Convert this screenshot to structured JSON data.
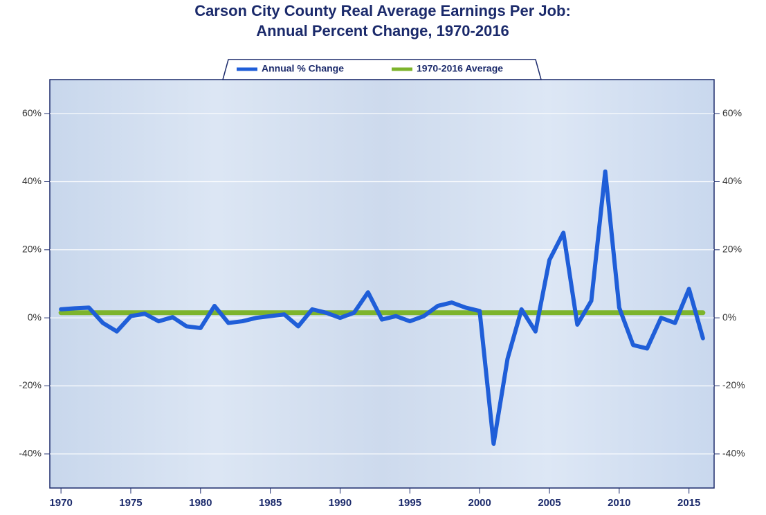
{
  "chart_data": {
    "type": "line",
    "title": [
      "Carson City County Real Average Earnings Per Job:",
      "Annual Percent Change, 1970-2016"
    ],
    "x": [
      1970,
      1971,
      1972,
      1973,
      1974,
      1975,
      1976,
      1977,
      1978,
      1979,
      1980,
      1981,
      1982,
      1983,
      1984,
      1985,
      1986,
      1987,
      1988,
      1989,
      1990,
      1991,
      1992,
      1993,
      1994,
      1995,
      1996,
      1997,
      1998,
      1999,
      2000,
      2001,
      2002,
      2003,
      2004,
      2005,
      2006,
      2007,
      2008,
      2009,
      2010,
      2011,
      2012,
      2013,
      2014,
      2015,
      2016
    ],
    "series": [
      {
        "name": "Annual % Change",
        "color": "#1f5ed8",
        "values": [
          2.5,
          2.8,
          3.0,
          -1.5,
          -4,
          0.5,
          1.2,
          -1,
          0.2,
          -2.5,
          -3,
          3.5,
          -1.5,
          -1,
          0,
          0.5,
          1,
          -2.5,
          2.5,
          1.5,
          0,
          1.5,
          7.5,
          -0.5,
          0.5,
          -1,
          0.5,
          3.5,
          4.5,
          3,
          2,
          -37,
          -12,
          2.5,
          -4,
          17,
          25,
          -2,
          5,
          43,
          3,
          -8,
          -9,
          0,
          -1.5,
          8.5,
          -6
        ]
      },
      {
        "name": "1970-2016 Average",
        "color": "#7db42c",
        "values": [
          1.5,
          1.5,
          1.5,
          1.5,
          1.5,
          1.5,
          1.5,
          1.5,
          1.5,
          1.5,
          1.5,
          1.5,
          1.5,
          1.5,
          1.5,
          1.5,
          1.5,
          1.5,
          1.5,
          1.5,
          1.5,
          1.5,
          1.5,
          1.5,
          1.5,
          1.5,
          1.5,
          1.5,
          1.5,
          1.5,
          1.5,
          1.5,
          1.5,
          1.5,
          1.5,
          1.5,
          1.5,
          1.5,
          1.5,
          1.5,
          1.5,
          1.5,
          1.5,
          1.5,
          1.5,
          1.5,
          1.5
        ]
      }
    ],
    "xlim": [
      1969.2,
      2016.8
    ],
    "xticks": [
      1970,
      1975,
      1980,
      1985,
      1990,
      1995,
      2000,
      2005,
      2010,
      2015
    ],
    "ylim": [
      -50,
      70
    ],
    "yticks": [
      {
        "value": -40,
        "label": "-40%"
      },
      {
        "value": -20,
        "label": "-20%"
      },
      {
        "value": 0,
        "label": "0%"
      },
      {
        "value": 20,
        "label": "20%"
      },
      {
        "value": 40,
        "label": "40%"
      },
      {
        "value": 60,
        "label": "60%"
      }
    ],
    "grid": true,
    "legend": "top"
  }
}
